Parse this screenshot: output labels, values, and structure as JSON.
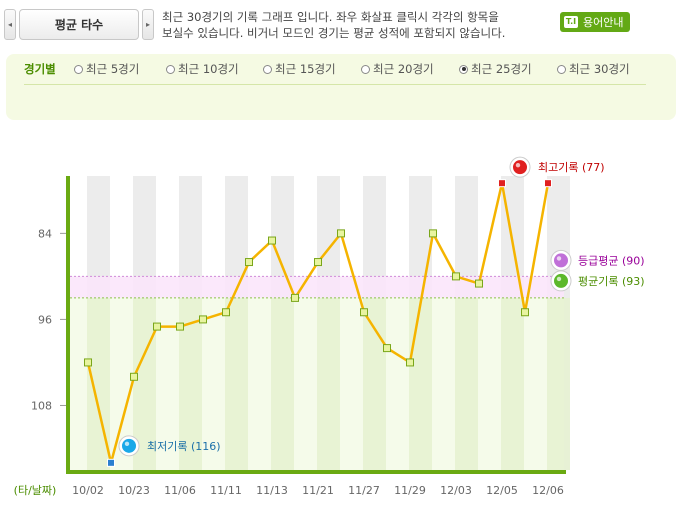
{
  "header": {
    "prev_arrow": "◂",
    "title": "평균 타수",
    "next_arrow": "▸",
    "description_line1": "최근 30경기의 기록 그래프 입니다. 좌우 화살표 클릭시 각각의 항목을",
    "description_line2": "보실수 있습니다. 비거너 모드인 경기는 평균 성적에 포함되지 않습니다.",
    "help_icon": "T.I",
    "help_label": "용어안내"
  },
  "filter": {
    "title": "경기별",
    "options": [
      {
        "label": "최근 5경기",
        "selected": false
      },
      {
        "label": "최근 10경기",
        "selected": false
      },
      {
        "label": "최근 15경기",
        "selected": false
      },
      {
        "label": "최근 20경기",
        "selected": false
      },
      {
        "label": "최근 25경기",
        "selected": true
      },
      {
        "label": "최근 30경기",
        "selected": false
      }
    ]
  },
  "colors": {
    "line": "#f5b400",
    "axis": "#6aaa12",
    "good_zone": "#f1f9e3",
    "stripe": "#ececec",
    "grade_band": "#fbe6fb",
    "best_marker": "#e02020",
    "worst_marker": "#1aa8e8",
    "grade_marker": "#c070d8",
    "avg_marker": "#5cb82a",
    "best_text": "#c00000",
    "worst_text": "#1a6fa8",
    "grade_text": "#990099",
    "avg_text": "#4b8d00"
  },
  "chart_data": {
    "type": "line",
    "xlabel": "(타/날짜)",
    "y_inverted": true,
    "ylim": [
      117,
      76
    ],
    "yticks": [
      84,
      96,
      108
    ],
    "x_tick_labels": [
      "10/02",
      "10/23",
      "11/06",
      "11/11",
      "11/13",
      "11/21",
      "11/27",
      "11/29",
      "12/03",
      "12/05",
      "12/06"
    ],
    "values": [
      102,
      116,
      104,
      97,
      97,
      96,
      95,
      88,
      85,
      93,
      88,
      84,
      95,
      100,
      102,
      84,
      90,
      91,
      77,
      95,
      77
    ],
    "reference_lines": {
      "grade_average": {
        "label": "등급평균 (90)",
        "value": 90
      },
      "average": {
        "label": "평균기록 (93)",
        "value": 93
      }
    },
    "best": {
      "label": "최고기록 (77)",
      "value": 77
    },
    "worst": {
      "label": "최저기록 (116)",
      "value": 116
    }
  }
}
